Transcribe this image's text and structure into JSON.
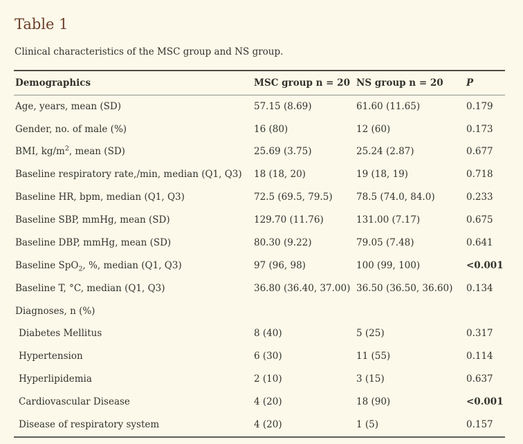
{
  "header": {
    "title": "Table 1",
    "caption": "Clinical characteristics of the MSC group and NS group."
  },
  "table": {
    "columns": [
      {
        "label": "Demographics"
      },
      {
        "label": "MSC group n = 20"
      },
      {
        "label": "NS group n = 20"
      },
      {
        "label": "P",
        "italic": true
      }
    ],
    "rows": [
      {
        "label": [
          {
            "t": "Age, years, mean (SD)"
          }
        ],
        "msc": "57.15 (8.69)",
        "ns": "61.60 (11.65)",
        "p": "0.179"
      },
      {
        "label": [
          {
            "t": "Gender, no. of male (%)"
          }
        ],
        "msc": "16 (80)",
        "ns": "12 (60)",
        "p": "0.173"
      },
      {
        "label": [
          {
            "t": "BMI, kg/m"
          },
          {
            "t": "2",
            "style": "sup"
          },
          {
            "t": ", mean (SD)"
          }
        ],
        "msc": "25.69 (3.75)",
        "ns": "25.24 (2.87)",
        "p": "0.677"
      },
      {
        "label": [
          {
            "t": "Baseline respiratory rate,/min, median (Q1, Q3)"
          }
        ],
        "msc": "18 (18, 20)",
        "ns": "19 (18, 19)",
        "p": "0.718"
      },
      {
        "label": [
          {
            "t": "Baseline HR, bpm, median (Q1, Q3)"
          }
        ],
        "msc": "72.5 (69.5, 79.5)",
        "ns": "78.5 (74.0, 84.0)",
        "p": "0.233"
      },
      {
        "label": [
          {
            "t": "Baseline SBP, mmHg, mean (SD)"
          }
        ],
        "msc": "129.70 (11.76)",
        "ns": "131.00 (7.17)",
        "p": "0.675"
      },
      {
        "label": [
          {
            "t": "Baseline DBP, mmHg, mean (SD)"
          }
        ],
        "msc": "80.30 (9.22)",
        "ns": "79.05 (7.48)",
        "p": "0.641"
      },
      {
        "label": [
          {
            "t": "Baseline SpO"
          },
          {
            "t": "2",
            "style": "sub"
          },
          {
            "t": ", %, median (Q1, Q3)"
          }
        ],
        "msc": "97 (96, 98)",
        "ns": "100 (99, 100)",
        "p": "<0.001",
        "p_bold": true
      },
      {
        "label": [
          {
            "t": "Baseline T, °C, median (Q1, Q3)"
          }
        ],
        "msc": "36.80 (36.40, 37.00)",
        "ns": "36.50 (36.50, 36.60)",
        "p": "0.134"
      },
      {
        "label": [
          {
            "t": "Diagnoses, n (%)"
          }
        ],
        "msc": "",
        "ns": "",
        "p": "",
        "section": true
      },
      {
        "label": [
          {
            "t": "Diabetes Mellitus"
          }
        ],
        "indent": true,
        "msc": "8 (40)",
        "ns": "5 (25)",
        "p": "0.317"
      },
      {
        "label": [
          {
            "t": "Hypertension"
          }
        ],
        "indent": true,
        "msc": "6 (30)",
        "ns": "11 (55)",
        "p": "0.114"
      },
      {
        "label": [
          {
            "t": "Hyperlipidemia"
          }
        ],
        "indent": true,
        "msc": "2 (10)",
        "ns": "3 (15)",
        "p": "0.637"
      },
      {
        "label": [
          {
            "t": "Cardiovascular Disease"
          }
        ],
        "indent": true,
        "msc": "4 (20)",
        "ns": "18 (90)",
        "p": "<0.001",
        "p_bold": true
      },
      {
        "label": [
          {
            "t": "Disease of respiratory system"
          }
        ],
        "indent": true,
        "msc": "4 (20)",
        "ns": "1 (5)",
        "p": "0.157"
      }
    ]
  },
  "colors": {
    "background": "#fcf9ea",
    "title": "#6e3e2a",
    "text": "#33332c",
    "rule_dark": "#4b4b43",
    "rule_mid": "#5f5f56",
    "rule_light": "#94948a"
  }
}
